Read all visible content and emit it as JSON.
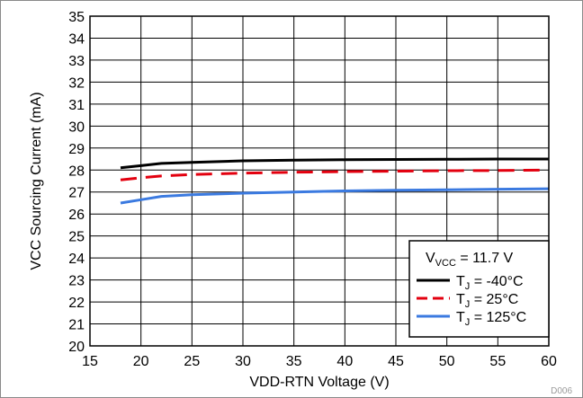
{
  "chart_data": {
    "type": "line",
    "xlabel": "VDD-RTN Voltage (V)",
    "ylabel": "VCC Sourcing Current (mA)",
    "xlim": [
      15,
      60
    ],
    "ylim": [
      20,
      35
    ],
    "x_ticks": [
      15,
      20,
      25,
      30,
      35,
      40,
      45,
      50,
      55,
      60
    ],
    "y_ticks": [
      20,
      21,
      22,
      23,
      24,
      25,
      26,
      27,
      28,
      29,
      30,
      31,
      32,
      33,
      34,
      35
    ],
    "grid": true,
    "legend_position": "bottom-right",
    "legend_title": {
      "main": "V",
      "sub": "VCC",
      "rest": " = 11.7 V"
    },
    "series": [
      {
        "label_main": "T",
        "label_sub": "J",
        "label_rest": " = -40°C",
        "color": "#000000",
        "style": "solid",
        "x": [
          18,
          20,
          22,
          25,
          30,
          35,
          40,
          45,
          50,
          55,
          60
        ],
        "y": [
          28.1,
          28.2,
          28.3,
          28.35,
          28.42,
          28.45,
          28.47,
          28.48,
          28.49,
          28.5,
          28.5
        ]
      },
      {
        "label_main": "T",
        "label_sub": "J",
        "label_rest": " = 25°C",
        "color": "#e3000f",
        "style": "dashed",
        "x": [
          18,
          20,
          22,
          25,
          30,
          35,
          40,
          45,
          50,
          55,
          60
        ],
        "y": [
          27.55,
          27.65,
          27.73,
          27.8,
          27.86,
          27.9,
          27.93,
          27.95,
          27.97,
          27.98,
          28.0
        ]
      },
      {
        "label_main": "T",
        "label_sub": "J",
        "label_rest": " = 125°C",
        "color": "#3b7ae0",
        "style": "solid",
        "x": [
          18,
          20,
          22,
          25,
          30,
          35,
          40,
          45,
          50,
          55,
          60
        ],
        "y": [
          26.5,
          26.65,
          26.8,
          26.88,
          26.95,
          27.0,
          27.05,
          27.08,
          27.1,
          27.13,
          27.15
        ]
      }
    ]
  },
  "figure_code": "D006"
}
